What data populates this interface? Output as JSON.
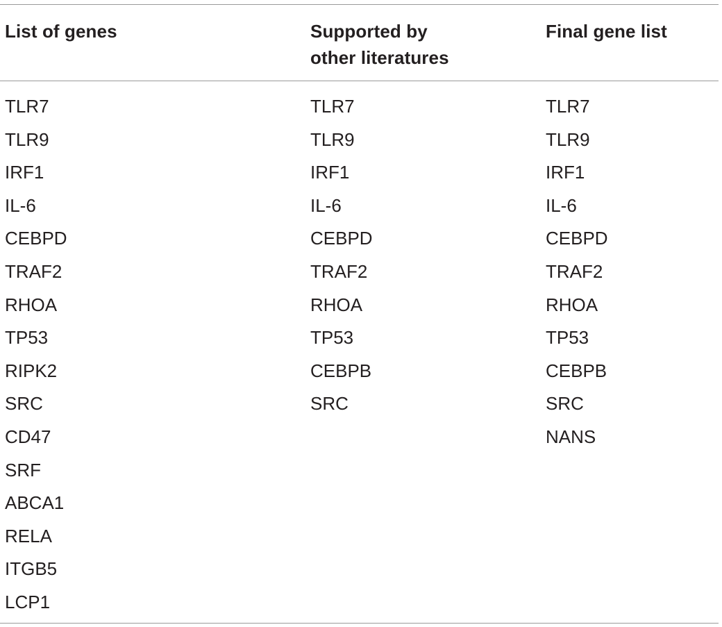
{
  "table": {
    "headers": [
      "List of genes",
      "Supported by other literatures",
      "Final gene list"
    ],
    "header_lines": {
      "col1": [
        "List of genes"
      ],
      "col2": [
        "Supported by",
        "other literatures"
      ],
      "col3": [
        "Final gene list"
      ]
    },
    "columns": {
      "list_of_genes": [
        "TLR7",
        "TLR9",
        "IRF1",
        "IL-6",
        "CEBPD",
        "TRAF2",
        "RHOA",
        "TP53",
        "RIPK2",
        "SRC",
        "CD47",
        "SRF",
        "ABCA1",
        "RELA",
        "ITGB5",
        "LCP1"
      ],
      "supported_by_other_literatures": [
        "TLR7",
        "TLR9",
        "IRF1",
        "IL-6",
        "CEBPD",
        "TRAF2",
        "RHOA",
        "TP53",
        "CEBPB",
        "SRC"
      ],
      "final_gene_list": [
        "TLR7",
        "TLR9",
        "IRF1",
        "IL-6",
        "CEBPD",
        "TRAF2",
        "RHOA",
        "TP53",
        "CEBPB",
        "SRC",
        "NANS"
      ]
    }
  }
}
